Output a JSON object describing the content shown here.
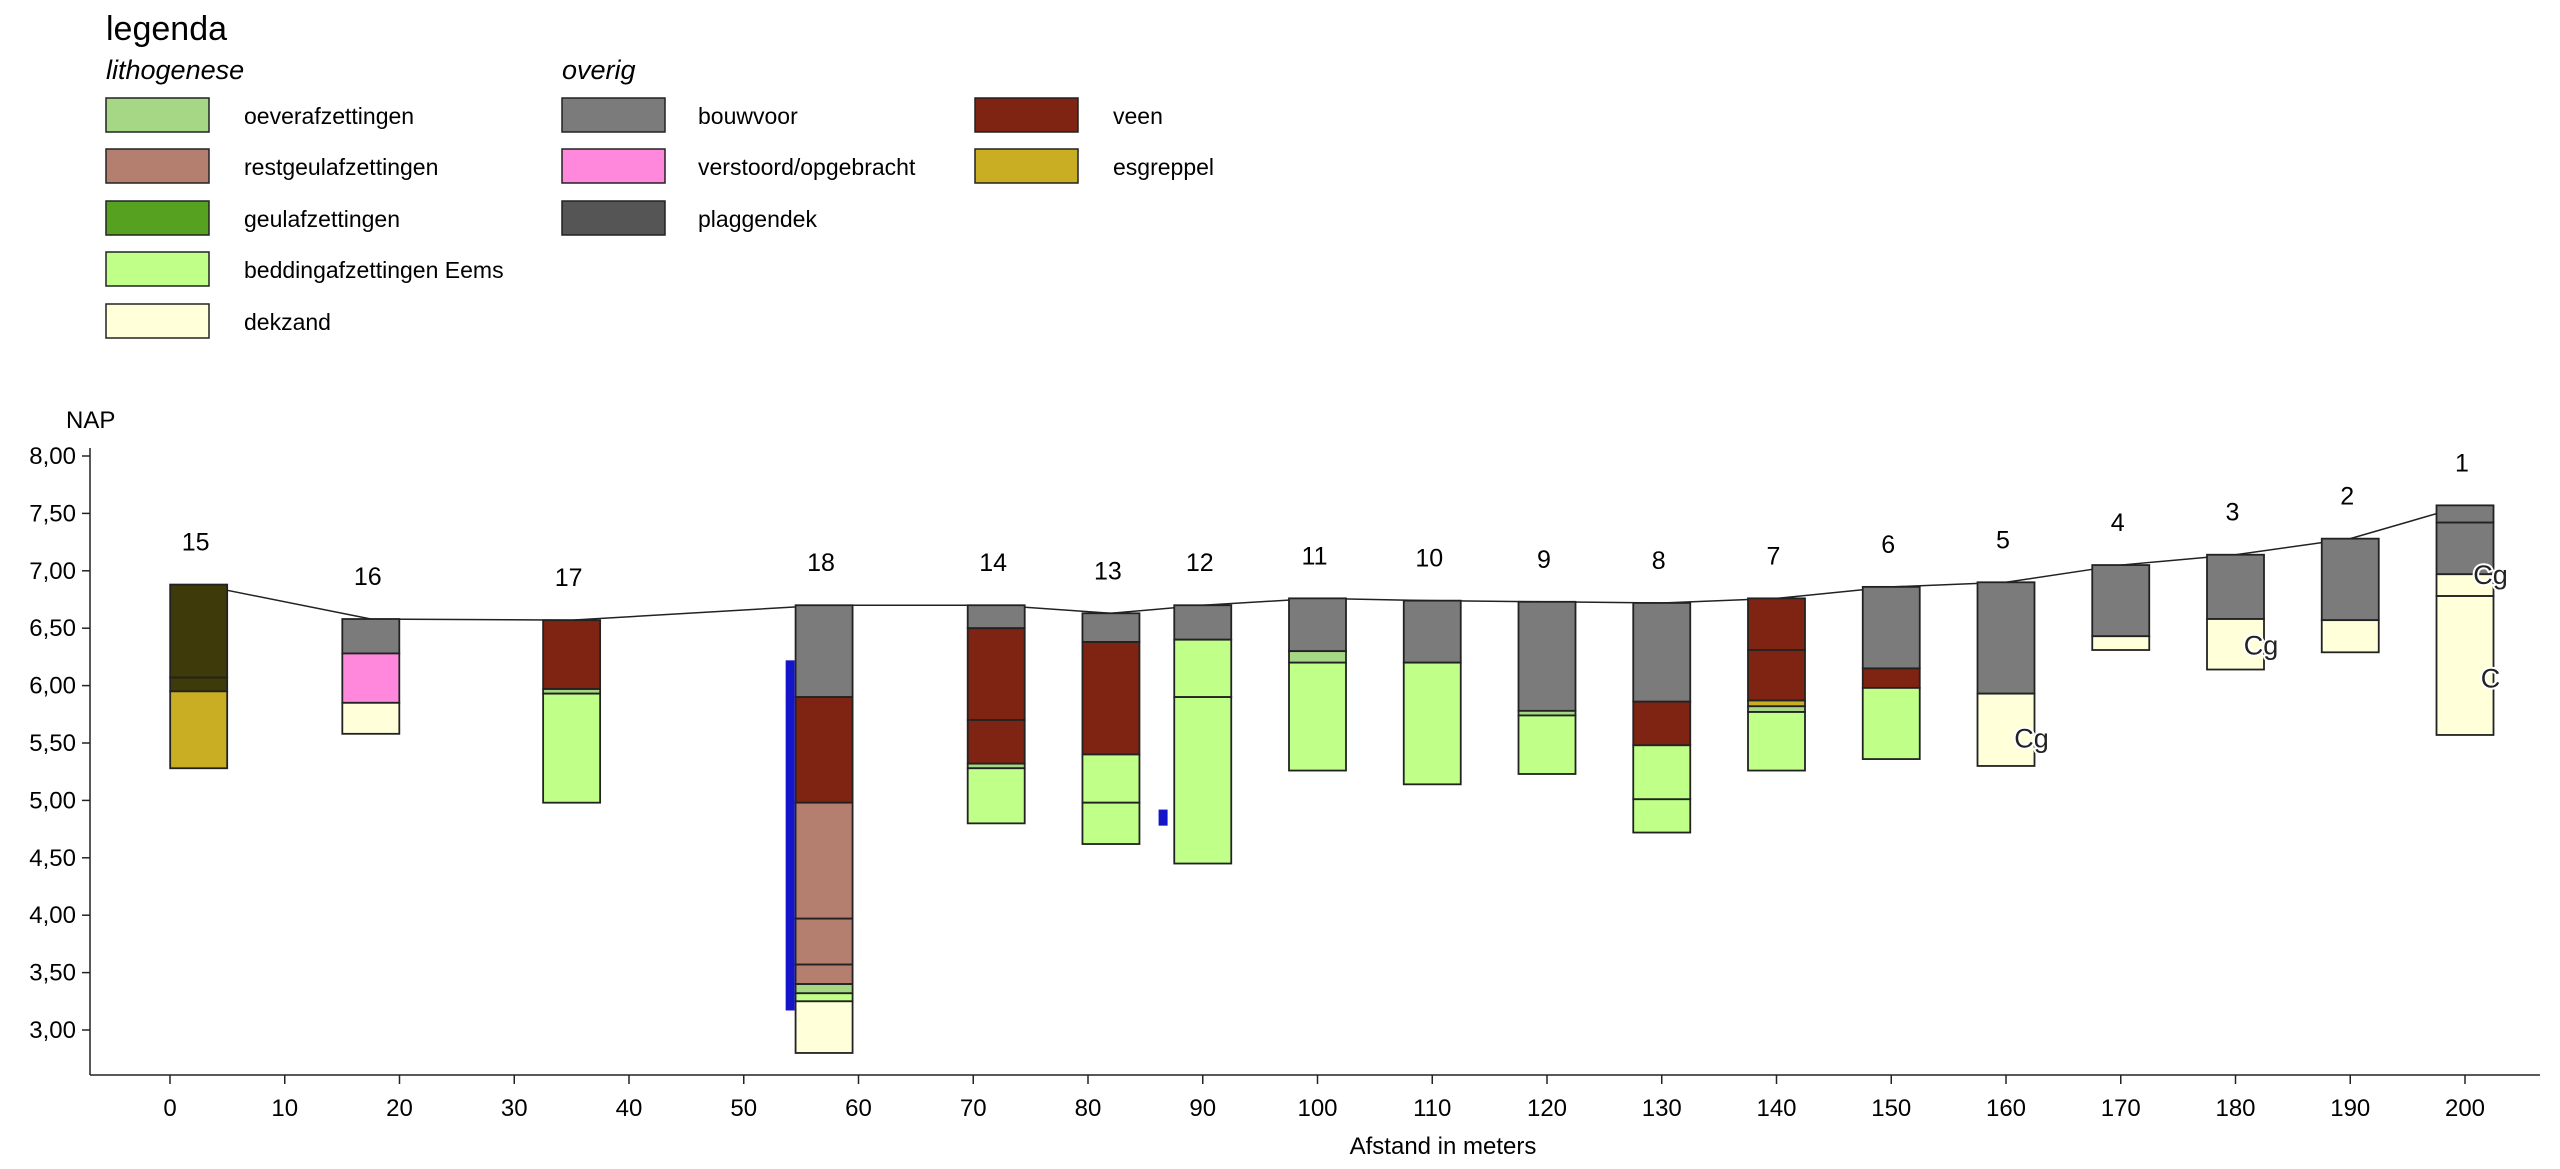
{
  "legend": {
    "title": "legenda",
    "groups": [
      {
        "heading": "lithogenese",
        "items": [
          {
            "label": "oeverafzettingen",
            "color": "#a6d785"
          },
          {
            "label": "restgeulafzettingen",
            "color": "#b57f70"
          },
          {
            "label": "geulafzettingen",
            "color": "#56a11f"
          },
          {
            "label": "beddingafzettingen Eems",
            "color": "#c0ff88"
          },
          {
            "label": "dekzand",
            "color": "#ffffd9"
          }
        ]
      },
      {
        "heading": "overig",
        "items": [
          {
            "label": "bouwvoor",
            "color": "#7b7b7b"
          },
          {
            "label": "verstoord/opgebracht",
            "color": "#ff88dd"
          },
          {
            "label": "plaggendek",
            "color": "#555555"
          }
        ]
      },
      {
        "heading": "",
        "items": [
          {
            "label": "veen",
            "color": "#7f2313"
          },
          {
            "label": "esgreppel",
            "color": "#c9ae23"
          }
        ]
      }
    ]
  },
  "chart_data": {
    "type": "borehole-profile",
    "ylabel": "NAP",
    "xlabel": "Afstand in meters",
    "xlim": [
      -5,
      207
    ],
    "ylim": [
      2.6,
      8.1
    ],
    "x_ticks": [
      0,
      10,
      20,
      30,
      40,
      50,
      60,
      70,
      80,
      90,
      100,
      110,
      120,
      130,
      140,
      150,
      160,
      170,
      180,
      190,
      200
    ],
    "y_ticks": [
      "3,00",
      "3,50",
      "4,00",
      "4,50",
      "5,00",
      "5,50",
      "6,00",
      "6,50",
      "7,00",
      "7,50",
      "8,00"
    ],
    "y_tick_values": [
      3.0,
      3.5,
      4.0,
      4.5,
      5.0,
      5.5,
      6.0,
      6.5,
      7.0,
      7.5,
      8.0
    ],
    "surface_line": [
      [
        2.5,
        6.88
      ],
      [
        17.5,
        6.58
      ],
      [
        35,
        6.57
      ],
      [
        57,
        6.7
      ],
      [
        72,
        6.7
      ],
      [
        82,
        6.63
      ],
      [
        90,
        6.7
      ],
      [
        100,
        6.76
      ],
      [
        110,
        6.74
      ],
      [
        120,
        6.73
      ],
      [
        130,
        6.72
      ],
      [
        140,
        6.76
      ],
      [
        150,
        6.86
      ],
      [
        160,
        6.9
      ],
      [
        170,
        7.05
      ],
      [
        180,
        7.14
      ],
      [
        190,
        7.28
      ],
      [
        200,
        7.57
      ]
    ],
    "borings": [
      {
        "id": "15",
        "x": 2.5,
        "layers": [
          [
            6.88,
            6.07,
            "plaggendek_dark"
          ],
          [
            6.07,
            5.95,
            "plaggendek_dark"
          ],
          [
            5.95,
            5.28,
            "esgreppel"
          ]
        ]
      },
      {
        "id": "16",
        "x": 17.5,
        "layers": [
          [
            6.58,
            6.28,
            "bouwvoor"
          ],
          [
            6.28,
            5.85,
            "verstoord"
          ],
          [
            5.85,
            5.58,
            "dekzand"
          ]
        ]
      },
      {
        "id": "17",
        "x": 35,
        "layers": [
          [
            6.57,
            5.97,
            "veen"
          ],
          [
            5.97,
            5.93,
            "oever"
          ],
          [
            5.93,
            4.98,
            "bedding"
          ]
        ]
      },
      {
        "id": "18",
        "x": 57,
        "layers": [
          [
            6.7,
            5.9,
            "bouwvoor"
          ],
          [
            5.9,
            4.98,
            "veen"
          ],
          [
            4.98,
            3.97,
            "restgeul"
          ],
          [
            3.97,
            3.57,
            "restgeul"
          ],
          [
            3.57,
            3.4,
            "restgeul"
          ],
          [
            3.4,
            3.32,
            "oever"
          ],
          [
            3.32,
            3.25,
            "bedding"
          ],
          [
            3.25,
            2.8,
            "dekzand"
          ]
        ]
      },
      {
        "id": "14",
        "x": 72,
        "layers": [
          [
            6.7,
            6.5,
            "bouwvoor"
          ],
          [
            6.5,
            5.7,
            "veen"
          ],
          [
            5.7,
            5.32,
            "veen"
          ],
          [
            5.32,
            5.28,
            "oever"
          ],
          [
            5.28,
            4.8,
            "bedding"
          ]
        ]
      },
      {
        "id": "13",
        "x": 82,
        "layers": [
          [
            6.63,
            6.38,
            "bouwvoor"
          ],
          [
            6.38,
            5.4,
            "veen"
          ],
          [
            5.4,
            4.98,
            "bedding"
          ],
          [
            4.98,
            4.62,
            "bedding"
          ]
        ]
      },
      {
        "id": "12",
        "x": 90,
        "layers": [
          [
            6.7,
            6.4,
            "bouwvoor"
          ],
          [
            6.4,
            5.9,
            "bedding"
          ],
          [
            5.9,
            4.45,
            "bedding"
          ]
        ]
      },
      {
        "id": "11",
        "x": 100,
        "layers": [
          [
            6.76,
            6.3,
            "bouwvoor"
          ],
          [
            6.3,
            6.2,
            "oever"
          ],
          [
            6.2,
            5.26,
            "bedding"
          ]
        ]
      },
      {
        "id": "10",
        "x": 110,
        "layers": [
          [
            6.74,
            6.2,
            "bouwvoor"
          ],
          [
            6.2,
            5.14,
            "bedding"
          ]
        ]
      },
      {
        "id": "9",
        "x": 120,
        "layers": [
          [
            6.73,
            5.78,
            "bouwvoor"
          ],
          [
            5.78,
            5.74,
            "oever"
          ],
          [
            5.74,
            5.23,
            "bedding"
          ]
        ]
      },
      {
        "id": "8",
        "x": 130,
        "layers": [
          [
            6.72,
            5.86,
            "bouwvoor"
          ],
          [
            5.86,
            5.48,
            "veen"
          ],
          [
            5.48,
            5.01,
            "bedding"
          ],
          [
            5.01,
            4.72,
            "bedding"
          ]
        ]
      },
      {
        "id": "7",
        "x": 140,
        "layers": [
          [
            6.76,
            6.31,
            "veen"
          ],
          [
            6.31,
            5.87,
            "veen"
          ],
          [
            5.87,
            5.82,
            "esgreppel"
          ],
          [
            5.82,
            5.77,
            "oever"
          ],
          [
            5.77,
            5.26,
            "bedding"
          ]
        ]
      },
      {
        "id": "6",
        "x": 150,
        "layers": [
          [
            6.86,
            6.15,
            "bouwvoor"
          ],
          [
            6.15,
            5.98,
            "veen"
          ],
          [
            5.98,
            5.36,
            "bedding"
          ]
        ]
      },
      {
        "id": "5",
        "x": 160,
        "layers": [
          [
            6.9,
            5.93,
            "bouwvoor"
          ],
          [
            5.93,
            5.3,
            "dekzand"
          ]
        ]
      },
      {
        "id": "4",
        "x": 170,
        "layers": [
          [
            7.05,
            6.43,
            "bouwvoor"
          ],
          [
            6.43,
            6.31,
            "dekzand"
          ]
        ]
      },
      {
        "id": "3",
        "x": 180,
        "layers": [
          [
            7.14,
            6.58,
            "bouwvoor"
          ],
          [
            6.58,
            6.14,
            "dekzand"
          ]
        ]
      },
      {
        "id": "2",
        "x": 190,
        "layers": [
          [
            7.28,
            6.57,
            "bouwvoor"
          ],
          [
            6.57,
            6.29,
            "dekzand"
          ]
        ]
      },
      {
        "id": "1",
        "x": 200,
        "layers": [
          [
            7.57,
            7.42,
            "bouwvoor"
          ],
          [
            7.42,
            6.97,
            "bouwvoor"
          ],
          [
            6.97,
            6.78,
            "dekzand"
          ],
          [
            6.78,
            5.57,
            "dekzand"
          ]
        ]
      }
    ],
    "annotations": [
      {
        "text": "Cg",
        "x": 201,
        "y": 6.97
      },
      {
        "text": "Cg",
        "x": 181,
        "y": 6.36
      },
      {
        "text": "C",
        "x": 201,
        "y": 6.07
      },
      {
        "text": "Cg",
        "x": 161,
        "y": 5.55
      }
    ],
    "blue_markers": [
      {
        "x": 54,
        "top": 6.22,
        "bottom": 3.17
      },
      {
        "x": 86.5,
        "top": 4.92,
        "bottom": 4.78
      }
    ],
    "colors": {
      "bouwvoor": "#7b7b7b",
      "veen": "#7f2313",
      "bedding": "#c0ff88",
      "oever": "#a6d785",
      "restgeul": "#b57f70",
      "dekzand": "#ffffd9",
      "verstoord": "#ff88dd",
      "esgreppel": "#c9ae23",
      "plaggendek_dark": "#3f3a0a",
      "marker": "#1414c8"
    }
  }
}
